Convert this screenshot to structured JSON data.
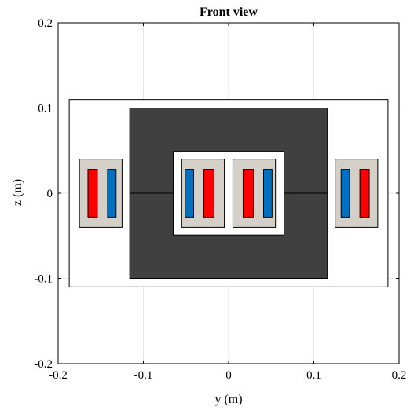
{
  "chart_data": {
    "type": "diagram",
    "title": "Front view",
    "xlabel": "y (m)",
    "ylabel": "z (m)",
    "xlim": [
      -0.2,
      0.2
    ],
    "ylim": [
      -0.2,
      0.2
    ],
    "grid": true,
    "xtick_labels": [
      "-0.2",
      "-0.1",
      "0",
      "0.1",
      "0.2"
    ],
    "ytick_labels": [
      "-0.2",
      "-0.1",
      "0",
      "0.1",
      "0.2"
    ],
    "xticks": [
      -0.2,
      -0.1,
      0,
      0.1,
      0.2
    ],
    "yticks": [
      -0.2,
      -0.1,
      0,
      0.1,
      0.2
    ],
    "colors": {
      "core": "#404040",
      "window": "#ffffff",
      "coil_box": "#d4d0c8",
      "conductor_red": "#ff0000",
      "conductor_blue": "#0070c0",
      "outline": "#000000",
      "grid": "#e6e6e6"
    },
    "outer_boundary": {
      "y": [
        -0.187,
        0.187
      ],
      "z": [
        -0.11,
        0.11
      ]
    },
    "core": {
      "y": [
        -0.116,
        0.116
      ],
      "z": [
        -0.1,
        0.1
      ]
    },
    "core_window": {
      "y": [
        -0.065,
        0.065
      ],
      "z": [
        -0.049,
        0.049
      ]
    },
    "core_midline": {
      "y": [
        -0.116,
        0.116
      ],
      "z": 0
    },
    "coil_boxes": [
      {
        "y": [
          -0.175,
          -0.125
        ],
        "z": [
          -0.04,
          0.04
        ]
      },
      {
        "y": [
          -0.055,
          -0.005
        ],
        "z": [
          -0.04,
          0.04
        ]
      },
      {
        "y": [
          0.005,
          0.055
        ],
        "z": [
          -0.04,
          0.04
        ]
      },
      {
        "y": [
          0.125,
          0.175
        ],
        "z": [
          -0.04,
          0.04
        ]
      }
    ],
    "conductors": [
      {
        "color": "red",
        "y": [
          -0.165,
          -0.154
        ],
        "z": [
          -0.028,
          0.028
        ]
      },
      {
        "color": "blue",
        "y": [
          -0.142,
          -0.132
        ],
        "z": [
          -0.028,
          0.028
        ]
      },
      {
        "color": "blue",
        "y": [
          -0.051,
          -0.041
        ],
        "z": [
          -0.028,
          0.028
        ]
      },
      {
        "color": "red",
        "y": [
          -0.029,
          -0.017
        ],
        "z": [
          -0.028,
          0.028
        ]
      },
      {
        "color": "red",
        "y": [
          0.017,
          0.029
        ],
        "z": [
          -0.028,
          0.028
        ]
      },
      {
        "color": "blue",
        "y": [
          0.041,
          0.051
        ],
        "z": [
          -0.028,
          0.028
        ]
      },
      {
        "color": "blue",
        "y": [
          0.132,
          0.142
        ],
        "z": [
          -0.028,
          0.028
        ]
      },
      {
        "color": "red",
        "y": [
          0.154,
          0.165
        ],
        "z": [
          -0.028,
          0.028
        ]
      }
    ]
  }
}
